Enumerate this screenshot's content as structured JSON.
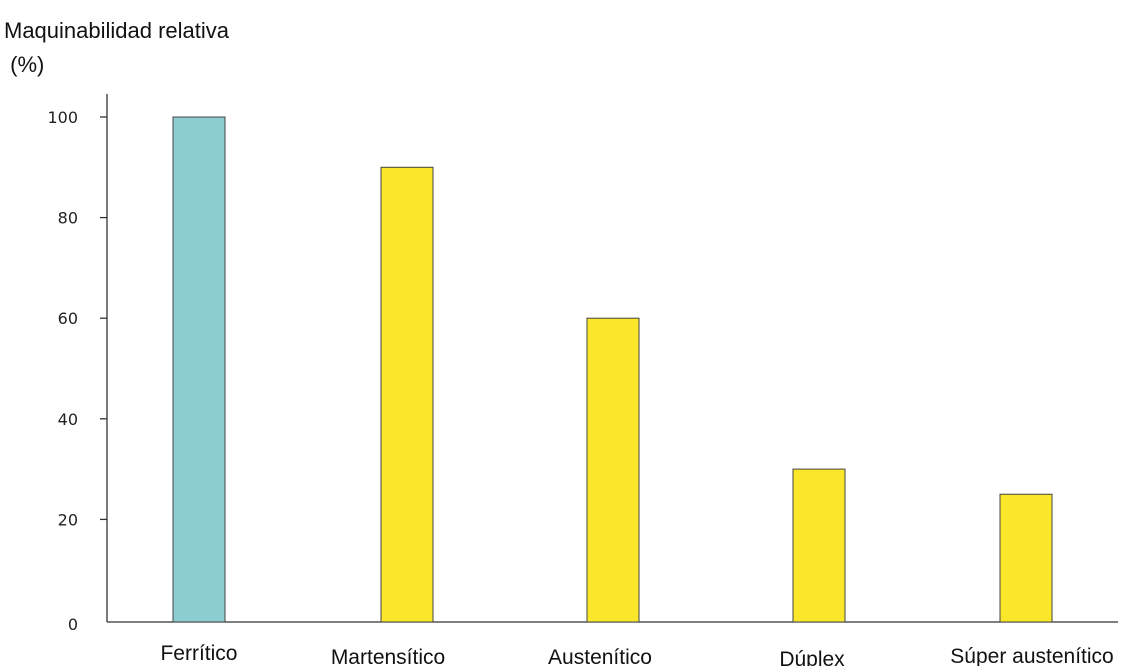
{
  "chart_data": {
    "type": "bar",
    "title": "",
    "ylabel_lines": [
      "Maquinabilidad relativa",
      " (%)"
    ],
    "xlabel": "",
    "categories": [
      "Ferrítico",
      "Martensítico",
      "Austenítico",
      "Dúplex",
      "Súper austenítico"
    ],
    "values": [
      100,
      90,
      60,
      30,
      25
    ],
    "bar_colors": [
      "#8ccdcf",
      "#fbe72a",
      "#fbe72a",
      "#fbe72a",
      "#fbe72a"
    ],
    "ylim": [
      0,
      100
    ],
    "yticks": [
      0,
      20,
      40,
      60,
      80,
      100
    ],
    "grid": false,
    "legend": "none"
  }
}
